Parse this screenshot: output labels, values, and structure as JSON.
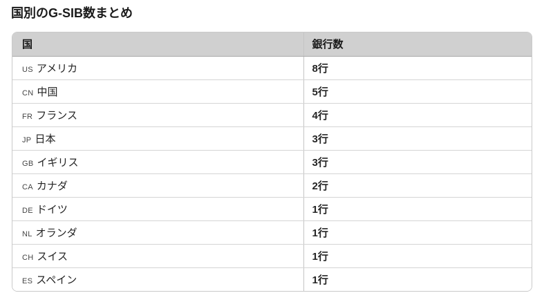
{
  "page": {
    "title": "国別のG-SIB数まとめ"
  },
  "table": {
    "columns": [
      {
        "label": "国"
      },
      {
        "label": "銀行数"
      }
    ],
    "rows": [
      {
        "code": "US",
        "country": "アメリカ",
        "banks": "8行"
      },
      {
        "code": "CN",
        "country": "中国",
        "banks": "5行"
      },
      {
        "code": "FR",
        "country": "フランス",
        "banks": "4行"
      },
      {
        "code": "JP",
        "country": "日本",
        "banks": "3行"
      },
      {
        "code": "GB",
        "country": "イギリス",
        "banks": "3行"
      },
      {
        "code": "CA",
        "country": "カナダ",
        "banks": "2行"
      },
      {
        "code": "DE",
        "country": "ドイツ",
        "banks": "1行"
      },
      {
        "code": "NL",
        "country": "オランダ",
        "banks": "1行"
      },
      {
        "code": "CH",
        "country": "スイス",
        "banks": "1行"
      },
      {
        "code": "ES",
        "country": "スペイン",
        "banks": "1行"
      }
    ]
  },
  "colors": {
    "header_bg": "#d0d0d0",
    "outer_border": "#c9c9c9",
    "row_divider": "#d4d4d4",
    "header_divider": "#a9a9a9",
    "column_divider": "#c4c4c4",
    "title_text": "#1b1b1b",
    "body_text": "#242424",
    "code_text": "#454545"
  }
}
